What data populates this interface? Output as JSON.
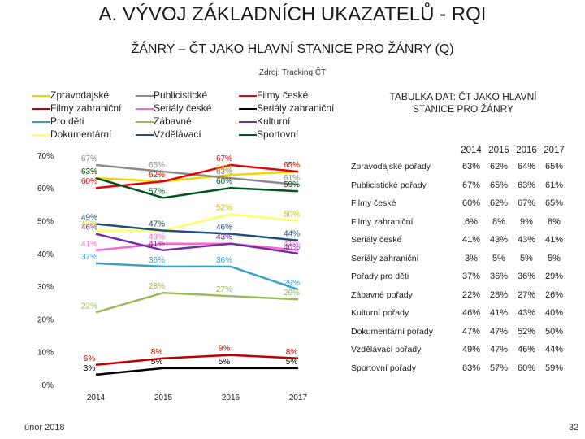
{
  "title": "A. VÝVOJ ZÁKLADNÍCH UKAZATELŮ - RQI",
  "subtitle": "ŽÁNRY – ČT JAKO HLAVNÍ STANICE PRO ŽÁNRY (Q)",
  "source": "Zdroj: Tracking ČT",
  "table_title": "TABULKA DAT: ČT JAKO HLAVNÍ STANICE PRO ŽÁNRY",
  "footer": {
    "date": "únor 2018",
    "page": "32"
  },
  "table": {
    "years": [
      "2014",
      "2015",
      "2016",
      "2017"
    ],
    "rows": [
      {
        "label": "Zpravodajské pořady",
        "values": [
          "63%",
          "62%",
          "64%",
          "65%"
        ]
      },
      {
        "label": "Publicistické pořady",
        "values": [
          "67%",
          "65%",
          "63%",
          "61%"
        ]
      },
      {
        "label": "Filmy české",
        "values": [
          "60%",
          "62%",
          "67%",
          "65%"
        ]
      },
      {
        "label": "Filmy zahraniční",
        "values": [
          "6%",
          "8%",
          "9%",
          "8%"
        ]
      },
      {
        "label": "Seriály české",
        "values": [
          "41%",
          "43%",
          "43%",
          "41%"
        ]
      },
      {
        "label": "Seriály zahraniční",
        "values": [
          "3%",
          "5%",
          "5%",
          "5%"
        ]
      },
      {
        "label": "Pořady pro děti",
        "values": [
          "37%",
          "36%",
          "36%",
          "29%"
        ]
      },
      {
        "label": "Zábavné pořady",
        "values": [
          "22%",
          "28%",
          "27%",
          "26%"
        ]
      },
      {
        "label": "Kulturní pořady",
        "values": [
          "46%",
          "41%",
          "43%",
          "40%"
        ]
      },
      {
        "label": "Dokumentární pořady",
        "values": [
          "47%",
          "47%",
          "52%",
          "50%"
        ]
      },
      {
        "label": "Vzdělávací pořady",
        "values": [
          "49%",
          "47%",
          "46%",
          "44%"
        ]
      },
      {
        "label": "Sportovní pořady",
        "values": [
          "63%",
          "57%",
          "60%",
          "59%"
        ]
      }
    ]
  },
  "chart_data": {
    "type": "line",
    "categories": [
      "2014",
      "2015",
      "2016",
      "2017"
    ],
    "ylim": [
      0,
      70
    ],
    "yticks": [
      "0%",
      "10%",
      "20%",
      "30%",
      "40%",
      "50%",
      "60%",
      "70%"
    ],
    "series": [
      {
        "name": "Zpravodajské",
        "color": "#f2d600",
        "values": [
          63,
          62,
          64,
          65
        ],
        "labels": [
          "63%",
          "62%",
          "64%",
          "65%"
        ]
      },
      {
        "name": "Publicistické",
        "color": "#8a8a8a",
        "values": [
          67,
          65,
          63,
          61
        ],
        "labels": [
          "67%",
          "65%",
          "63%",
          "61%"
        ]
      },
      {
        "name": "Filmy české",
        "color": "#e8000b",
        "values": [
          60,
          62,
          67,
          65
        ],
        "labels": [
          "60%",
          "62%",
          "67%",
          "65%"
        ]
      },
      {
        "name": "Filmy zahraniční",
        "color": "#c00000",
        "values": [
          6,
          8,
          9,
          8
        ],
        "labels": [
          "6%",
          "8%",
          "9%",
          "8%"
        ]
      },
      {
        "name": "Seriály české",
        "color": "#ff66cc",
        "values": [
          41,
          43,
          43,
          41
        ],
        "labels": [
          "41%",
          "43%",
          "43%",
          "41%"
        ]
      },
      {
        "name": "Seriály zahraniční",
        "color": "#000000",
        "values": [
          3,
          5,
          5,
          5
        ],
        "labels": [
          "3%",
          "5%",
          "5%",
          "5%"
        ]
      },
      {
        "name": "Pro děti",
        "color": "#3aa0c8",
        "values": [
          37,
          36,
          36,
          29
        ],
        "labels": [
          "37%",
          "36%",
          "36%",
          "29%"
        ]
      },
      {
        "name": "Zábavné",
        "color": "#9bbb59",
        "values": [
          22,
          28,
          27,
          26
        ],
        "labels": [
          "22%",
          "28%",
          "27%",
          "26%"
        ]
      },
      {
        "name": "Kulturní",
        "color": "#7030a0",
        "values": [
          46,
          41,
          43,
          40
        ],
        "labels": [
          "46%",
          "41%",
          "43%",
          "40%"
        ]
      },
      {
        "name": "Dokumentární",
        "color": "#ffff66",
        "values": [
          47,
          47,
          52,
          50
        ],
        "labels": [
          "47%",
          "47%",
          "52%",
          "50%"
        ]
      },
      {
        "name": "Vzdělávací",
        "color": "#1f4e79",
        "values": [
          49,
          47,
          46,
          44
        ],
        "labels": [
          "49%",
          "47%",
          "46%",
          "44%"
        ]
      },
      {
        "name": "Sportovní",
        "color": "#00541d",
        "values": [
          63,
          57,
          60,
          59
        ],
        "labels": [
          "63%",
          "57%",
          "60%",
          "59%"
        ]
      }
    ]
  }
}
